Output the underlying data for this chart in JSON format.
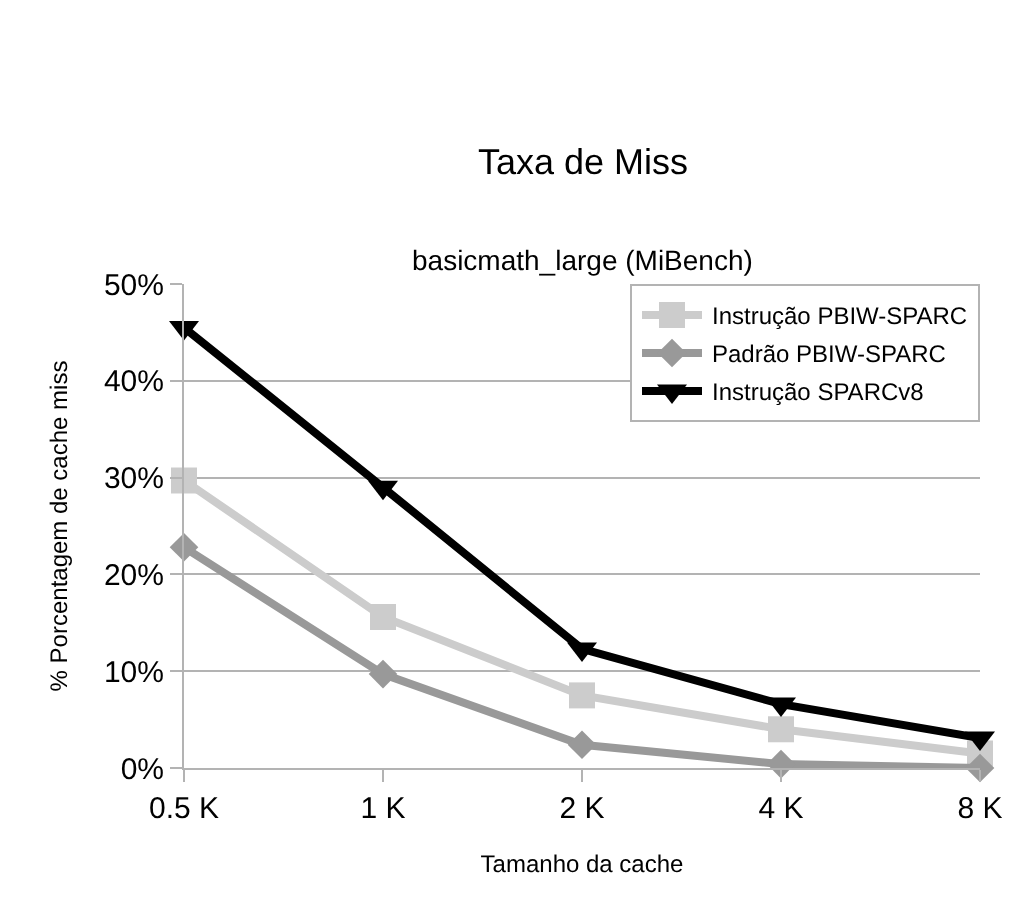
{
  "chart_data": {
    "type": "line",
    "title": "Taxa de Miss",
    "subtitle": "basicmath_large (MiBench)",
    "xlabel": "Tamanho da cache",
    "ylabel": "% Porcentagem de cache miss",
    "categories": [
      "0.5 K",
      "1 K",
      "2 K",
      "4 K",
      "8 K"
    ],
    "series": [
      {
        "name": "Instrução PBIW-SPARC",
        "color": "#cccccc",
        "marker": "square",
        "values": [
          29.7,
          15.6,
          7.5,
          4.0,
          1.5
        ]
      },
      {
        "name": "Padrão PBIW-SPARC",
        "color": "#999999",
        "marker": "diamond",
        "values": [
          22.8,
          9.7,
          2.4,
          0.4,
          0.0
        ]
      },
      {
        "name": "Instrução SPARCv8",
        "color": "#000000",
        "marker": "triangle",
        "values": [
          45.5,
          29.0,
          12.3,
          6.6,
          3.1
        ]
      }
    ],
    "ylim": [
      0,
      50
    ],
    "yticks": [
      {
        "value": 0,
        "label": "0%"
      },
      {
        "value": 10,
        "label": "10%"
      },
      {
        "value": 20,
        "label": "20%"
      },
      {
        "value": 30,
        "label": "30%"
      },
      {
        "value": 40,
        "label": "40%"
      },
      {
        "value": 50,
        "label": "50%"
      }
    ],
    "grid": "y",
    "legend": "top right",
    "line_style": "solid"
  }
}
